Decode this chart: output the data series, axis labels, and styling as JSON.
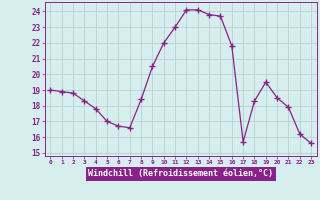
{
  "x": [
    0,
    1,
    2,
    3,
    4,
    5,
    6,
    7,
    8,
    9,
    10,
    11,
    12,
    13,
    14,
    15,
    16,
    17,
    18,
    19,
    20,
    21,
    22,
    23
  ],
  "y": [
    19.0,
    18.9,
    18.8,
    18.3,
    17.8,
    17.0,
    16.7,
    16.6,
    18.4,
    20.5,
    22.0,
    23.0,
    24.1,
    24.1,
    23.8,
    23.7,
    21.8,
    15.7,
    18.3,
    19.5,
    18.5,
    17.9,
    16.2,
    15.6
  ],
  "line_color": "#882288",
  "marker": "+",
  "marker_size": 4,
  "bg_color": "#d6eeee",
  "grid_color": "#b0cccc",
  "xlabel": "Windchill (Refroidissement éolien,°C)",
  "xlabel_color": "#ffffff",
  "xlabel_bg": "#882288",
  "ylabel_ticks": [
    15,
    16,
    17,
    18,
    19,
    20,
    21,
    22,
    23,
    24
  ],
  "xlim": [
    -0.5,
    23.5
  ],
  "ylim": [
    14.8,
    24.6
  ],
  "tick_color": "#882288",
  "spine_color": "#882288"
}
